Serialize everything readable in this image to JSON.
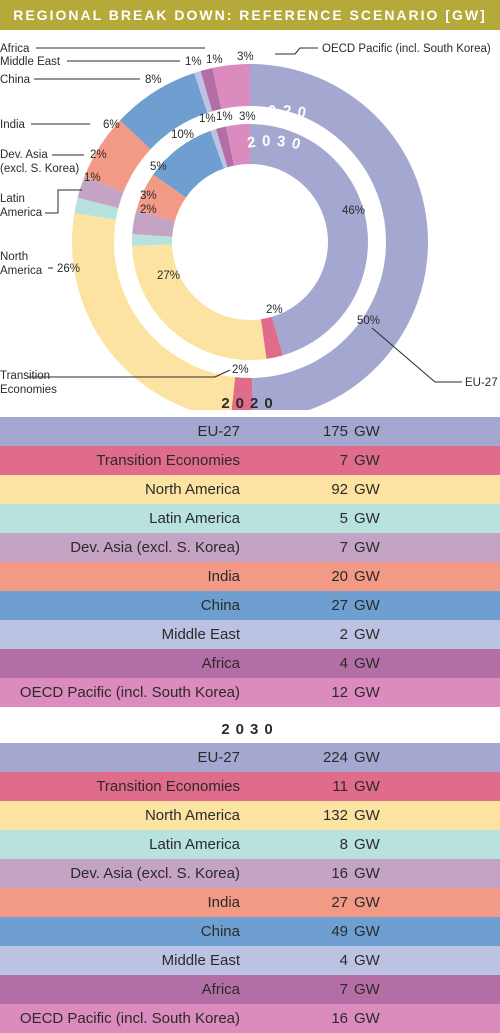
{
  "title": "REGIONAL BREAK DOWN: REFERENCE SCENARIO [GW]",
  "chart_data": {
    "type": "pie",
    "rings": [
      {
        "name": "2020",
        "slices": [
          {
            "region": "EU-27",
            "pct": "50%",
            "share": 50,
            "color": "#a4a8d1"
          },
          {
            "region": "Transition Economies",
            "pct": "2%",
            "share": 2,
            "color": "#e06b8b"
          },
          {
            "region": "North America",
            "pct": "26%",
            "share": 26,
            "color": "#fde3a2"
          },
          {
            "region": "Latin America",
            "pct": "1%",
            "share": 1.4,
            "color": "#b8e2de"
          },
          {
            "region": "Dev. Asia (excl. S. Korea)",
            "pct": "2%",
            "share": 2,
            "color": "#c4a3c4"
          },
          {
            "region": "India",
            "pct": "6%",
            "share": 6,
            "color": "#f29a86"
          },
          {
            "region": "China",
            "pct": "8%",
            "share": 8,
            "color": "#6e9fd0"
          },
          {
            "region": "Middle East",
            "pct": "1%",
            "share": 0.6,
            "color": "#bcc3e2"
          },
          {
            "region": "Africa",
            "pct": "1%",
            "share": 1.1,
            "color": "#b46ea6"
          },
          {
            "region": "OECD Pacific (incl. South Korea)",
            "pct": "3%",
            "share": 3.4,
            "color": "#db8bbd"
          }
        ]
      },
      {
        "name": "2030",
        "slices": [
          {
            "region": "EU-27",
            "pct": "46%",
            "share": 46,
            "color": "#a4a8d1"
          },
          {
            "region": "Transition Economies",
            "pct": "2%",
            "share": 2.3,
            "color": "#e06b8b"
          },
          {
            "region": "North America",
            "pct": "27%",
            "share": 27,
            "color": "#fde3a2"
          },
          {
            "region": "Latin America",
            "pct": "2%",
            "share": 1.6,
            "color": "#b8e2de"
          },
          {
            "region": "Dev. Asia (excl. S. Korea)",
            "pct": "3%",
            "share": 3.3,
            "color": "#c4a3c4"
          },
          {
            "region": "India",
            "pct": "5%",
            "share": 5.4,
            "color": "#f29a86"
          },
          {
            "region": "China",
            "pct": "10%",
            "share": 10,
            "color": "#6e9fd0"
          },
          {
            "region": "Middle East",
            "pct": "1%",
            "share": 0.8,
            "color": "#bcc3e2"
          },
          {
            "region": "Africa",
            "pct": "1%",
            "share": 1.4,
            "color": "#b46ea6"
          },
          {
            "region": "OECD Pacific (incl. South Korea)",
            "pct": "3%",
            "share": 3.3,
            "color": "#db8bbd"
          }
        ]
      }
    ],
    "labels": {
      "africa": "Africa",
      "middle_east": "Middle East",
      "china": "China",
      "india": "India",
      "dev_asia_1": "Dev. Asia",
      "dev_asia_2": "(excl. S. Korea)",
      "latin_america_1": "Latin",
      "latin_america_2": "America",
      "north_america_1": "North",
      "north_america_2": "America",
      "transition_1": "Transition",
      "transition_2": "Economies",
      "eu27": "EU-27",
      "oecd": "OECD Pacific (incl. South Korea)"
    },
    "tables": [
      {
        "year": "2020",
        "rows": [
          {
            "region": "EU-27",
            "value": "175",
            "unit": "GW",
            "color": "#a4a8d1"
          },
          {
            "region": "Transition Economies",
            "value": "7",
            "unit": "GW",
            "color": "#e06b8b"
          },
          {
            "region": "North America",
            "value": "92",
            "unit": "GW",
            "color": "#fde3a2"
          },
          {
            "region": "Latin America",
            "value": "5",
            "unit": "GW",
            "color": "#b8e2de"
          },
          {
            "region": "Dev. Asia (excl. S. Korea)",
            "value": "7",
            "unit": "GW",
            "color": "#c4a3c4"
          },
          {
            "region": "India",
            "value": "20",
            "unit": "GW",
            "color": "#f29a86"
          },
          {
            "region": "China",
            "value": "27",
            "unit": "GW",
            "color": "#6e9fd0"
          },
          {
            "region": "Middle East",
            "value": "2",
            "unit": "GW",
            "color": "#bcc3e2"
          },
          {
            "region": "Africa",
            "value": "4",
            "unit": "GW",
            "color": "#b46ea6"
          },
          {
            "region": "OECD Pacific (incl. South Korea)",
            "value": "12",
            "unit": "GW",
            "color": "#db8bbd"
          }
        ]
      },
      {
        "year": "2030",
        "rows": [
          {
            "region": "EU-27",
            "value": "224",
            "unit": "GW",
            "color": "#a4a8d1"
          },
          {
            "region": "Transition Economies",
            "value": "11",
            "unit": "GW",
            "color": "#e06b8b"
          },
          {
            "region": "North America",
            "value": "132",
            "unit": "GW",
            "color": "#fde3a2"
          },
          {
            "region": "Latin America",
            "value": "8",
            "unit": "GW",
            "color": "#b8e2de"
          },
          {
            "region": "Dev. Asia (excl. S. Korea)",
            "value": "16",
            "unit": "GW",
            "color": "#c4a3c4"
          },
          {
            "region": "India",
            "value": "27",
            "unit": "GW",
            "color": "#f29a86"
          },
          {
            "region": "China",
            "value": "49",
            "unit": "GW",
            "color": "#6e9fd0"
          },
          {
            "region": "Middle East",
            "value": "4",
            "unit": "GW",
            "color": "#bcc3e2"
          },
          {
            "region": "Africa",
            "value": "7",
            "unit": "GW",
            "color": "#b46ea6"
          },
          {
            "region": "OECD Pacific (incl. South Korea)",
            "value": "16",
            "unit": "GW",
            "color": "#db8bbd"
          }
        ]
      }
    ]
  }
}
